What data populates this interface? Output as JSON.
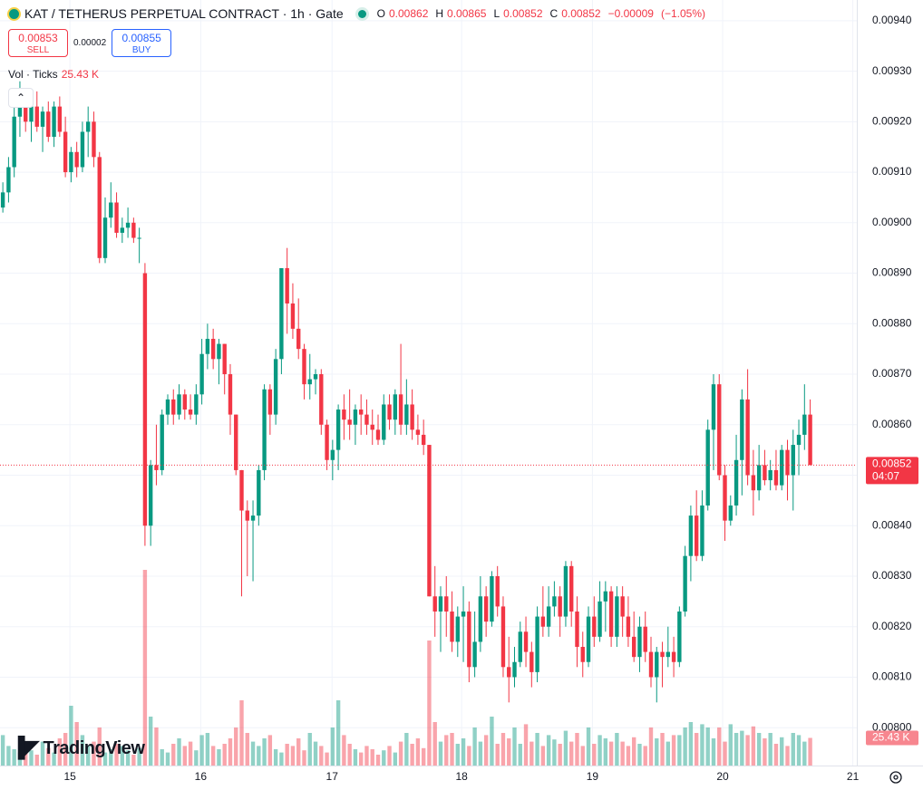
{
  "chart_data": {
    "type": "candlestick",
    "title": "KAT / TETHERUS PERPETUAL CONTRACT · 1h · Gate",
    "legend_keys": [
      "O",
      "H",
      "L",
      "C"
    ],
    "legend_values": [
      0.00862,
      0.00865,
      0.00852,
      0.00852
    ],
    "change": {
      "value": -9e-05,
      "label": "−0.00009"
    },
    "change_pct": {
      "value": -1.05,
      "label": "(−1.05%)"
    },
    "sell": {
      "price": 0.00853,
      "label": "SELL"
    },
    "spread": 2e-05,
    "buy": {
      "price": 0.00855,
      "label": "BUY"
    },
    "volume_title": "Vol · Ticks",
    "volume_label": {
      "value": 25.43,
      "label": "25.43 K"
    },
    "last_price": 0.00852,
    "countdown": "04:07",
    "brand": "TradingView",
    "up_color": "#089981",
    "down_color": "#f23645",
    "grid": true,
    "ylim": [
      0.007925,
      0.009441
    ],
    "yticks": [
      {
        "value": 0.0094,
        "label": "0.00940"
      },
      {
        "value": 0.0093,
        "label": "0.00930"
      },
      {
        "value": 0.0092,
        "label": "0.00920"
      },
      {
        "value": 0.0091,
        "label": "0.00910"
      },
      {
        "value": 0.009,
        "label": "0.00900"
      },
      {
        "value": 0.0089,
        "label": "0.00890"
      },
      {
        "value": 0.0088,
        "label": "0.00880"
      },
      {
        "value": 0.0087,
        "label": "0.00870"
      },
      {
        "value": 0.0086,
        "label": "0.00860"
      },
      {
        "value": 0.0085,
        "label": "0.00850"
      },
      {
        "value": 0.0084,
        "label": "0.00840"
      },
      {
        "value": 0.0083,
        "label": "0.00830"
      },
      {
        "value": 0.0082,
        "label": "0.00820"
      },
      {
        "value": 0.0081,
        "label": "0.00810"
      },
      {
        "value": 0.008,
        "label": "0.00800"
      }
    ],
    "xlim": [
      -0.5,
      150.2
    ],
    "xticks": [
      {
        "value": 11.8,
        "label": "15"
      },
      {
        "value": 34.8,
        "label": "16"
      },
      {
        "value": 57.9,
        "label": "17"
      },
      {
        "value": 80.7,
        "label": "18"
      },
      {
        "value": 103.7,
        "label": "19"
      },
      {
        "value": 126.6,
        "label": "20"
      },
      {
        "value": 149.5,
        "label": "21"
      }
    ],
    "volume_ylim": [
      0,
      250
    ],
    "ohlc": [
      [
        0.00903,
        0.00908,
        0.00902,
        0.00906
      ],
      [
        0.00906,
        0.00913,
        0.00904,
        0.00911
      ],
      [
        0.00911,
        0.00923,
        0.00909,
        0.00921
      ],
      [
        0.00921,
        0.00928,
        0.00917,
        0.00924
      ],
      [
        0.00924,
        0.00926,
        0.00918,
        0.0092
      ],
      [
        0.0092,
        0.00925,
        0.00916,
        0.00923
      ],
      [
        0.00923,
        0.00926,
        0.00918,
        0.00919
      ],
      [
        0.00919,
        0.00923,
        0.00914,
        0.00922
      ],
      [
        0.00922,
        0.00924,
        0.00916,
        0.00917
      ],
      [
        0.00917,
        0.00924,
        0.00915,
        0.00923
      ],
      [
        0.00923,
        0.00925,
        0.00917,
        0.00918
      ],
      [
        0.00918,
        0.00921,
        0.00909,
        0.0091
      ],
      [
        0.0091,
        0.00915,
        0.00908,
        0.00914
      ],
      [
        0.00914,
        0.00916,
        0.00909,
        0.00911
      ],
      [
        0.00911,
        0.0092,
        0.0091,
        0.00918
      ],
      [
        0.00918,
        0.00923,
        0.00913,
        0.0092
      ],
      [
        0.0092,
        0.00922,
        0.00911,
        0.00913
      ],
      [
        0.00913,
        0.00914,
        0.00892,
        0.00893
      ],
      [
        0.00893,
        0.00905,
        0.00892,
        0.00901
      ],
      [
        0.00901,
        0.00908,
        0.00899,
        0.00904
      ],
      [
        0.00904,
        0.00906,
        0.00897,
        0.00898
      ],
      [
        0.00898,
        0.00901,
        0.00896,
        0.00899
      ],
      [
        0.00899,
        0.00903,
        0.00897,
        0.009
      ],
      [
        0.009,
        0.00901,
        0.00896,
        0.00897
      ],
      [
        0.00897,
        0.00899,
        0.00892,
        0.00897
      ],
      [
        0.0089,
        0.00892,
        0.00836,
        0.0084
      ],
      [
        0.0084,
        0.00853,
        0.00836,
        0.00852
      ],
      [
        0.00852,
        0.0086,
        0.00848,
        0.00851
      ],
      [
        0.00851,
        0.00863,
        0.0085,
        0.00862
      ],
      [
        0.00862,
        0.00866,
        0.0086,
        0.00865
      ],
      [
        0.00865,
        0.00867,
        0.0086,
        0.00862
      ],
      [
        0.00862,
        0.00868,
        0.00861,
        0.00866
      ],
      [
        0.00866,
        0.00867,
        0.00861,
        0.00863
      ],
      [
        0.00863,
        0.00866,
        0.00861,
        0.00862
      ],
      [
        0.00862,
        0.00868,
        0.0086,
        0.00866
      ],
      [
        0.00866,
        0.00877,
        0.00864,
        0.00874
      ],
      [
        0.00874,
        0.0088,
        0.00871,
        0.00877
      ],
      [
        0.00877,
        0.00879,
        0.00871,
        0.00873
      ],
      [
        0.00873,
        0.00877,
        0.00868,
        0.00876
      ],
      [
        0.00876,
        0.00876,
        0.00866,
        0.0087
      ],
      [
        0.0087,
        0.00872,
        0.00858,
        0.00862
      ],
      [
        0.00862,
        0.00862,
        0.0085,
        0.00851
      ],
      [
        0.00851,
        0.00851,
        0.00826,
        0.00843
      ],
      [
        0.00843,
        0.00845,
        0.0083,
        0.00841
      ],
      [
        0.00841,
        0.00845,
        0.00829,
        0.00842
      ],
      [
        0.00842,
        0.00852,
        0.0084,
        0.00851
      ],
      [
        0.00851,
        0.00868,
        0.00849,
        0.00867
      ],
      [
        0.00867,
        0.00868,
        0.00858,
        0.00862
      ],
      [
        0.00862,
        0.00875,
        0.0086,
        0.00873
      ],
      [
        0.00873,
        0.00891,
        0.0087,
        0.00891
      ],
      [
        0.00891,
        0.00895,
        0.00878,
        0.00884
      ],
      [
        0.00884,
        0.00888,
        0.00877,
        0.00879
      ],
      [
        0.00879,
        0.00885,
        0.00873,
        0.00875
      ],
      [
        0.00875,
        0.00876,
        0.00865,
        0.00868
      ],
      [
        0.00868,
        0.00874,
        0.00865,
        0.00869
      ],
      [
        0.00869,
        0.00871,
        0.00866,
        0.0087
      ],
      [
        0.0087,
        0.00871,
        0.00858,
        0.0086
      ],
      [
        0.0086,
        0.00861,
        0.00851,
        0.00853
      ],
      [
        0.00853,
        0.00857,
        0.00849,
        0.00855
      ],
      [
        0.00855,
        0.00864,
        0.00851,
        0.00863
      ],
      [
        0.00863,
        0.00866,
        0.00857,
        0.00861
      ],
      [
        0.00861,
        0.00867,
        0.00857,
        0.0086
      ],
      [
        0.0086,
        0.00864,
        0.00856,
        0.00863
      ],
      [
        0.00863,
        0.00866,
        0.00858,
        0.00862
      ],
      [
        0.00862,
        0.00865,
        0.00858,
        0.0086
      ],
      [
        0.0086,
        0.00863,
        0.00856,
        0.00859
      ],
      [
        0.00859,
        0.00862,
        0.00856,
        0.00857
      ],
      [
        0.00857,
        0.00866,
        0.00856,
        0.00864
      ],
      [
        0.00864,
        0.00866,
        0.00859,
        0.00861
      ],
      [
        0.00861,
        0.00867,
        0.00858,
        0.00866
      ],
      [
        0.00866,
        0.00876,
        0.00858,
        0.0086
      ],
      [
        0.0086,
        0.00869,
        0.00858,
        0.00864
      ],
      [
        0.00864,
        0.00867,
        0.00857,
        0.00859
      ],
      [
        0.00859,
        0.00862,
        0.00856,
        0.00858
      ],
      [
        0.00858,
        0.00861,
        0.00854,
        0.00856
      ],
      [
        0.00856,
        0.00856,
        0.00826,
        0.00826
      ],
      [
        0.00826,
        0.00832,
        0.00818,
        0.00823
      ],
      [
        0.00823,
        0.00828,
        0.00815,
        0.00826
      ],
      [
        0.00826,
        0.0083,
        0.00818,
        0.00823
      ],
      [
        0.00823,
        0.00827,
        0.00815,
        0.00817
      ],
      [
        0.00817,
        0.00824,
        0.00814,
        0.00822
      ],
      [
        0.00822,
        0.00828,
        0.00813,
        0.00823
      ],
      [
        0.00823,
        0.00825,
        0.00809,
        0.00812
      ],
      [
        0.00812,
        0.00823,
        0.0081,
        0.00817
      ],
      [
        0.00817,
        0.0083,
        0.00815,
        0.00826
      ],
      [
        0.00826,
        0.00828,
        0.00818,
        0.00821
      ],
      [
        0.00821,
        0.00831,
        0.0082,
        0.0083
      ],
      [
        0.0083,
        0.00832,
        0.00822,
        0.00824
      ],
      [
        0.00824,
        0.00826,
        0.0081,
        0.00812
      ],
      [
        0.00812,
        0.00818,
        0.00805,
        0.0081
      ],
      [
        0.0081,
        0.00816,
        0.00808,
        0.00813
      ],
      [
        0.00813,
        0.00821,
        0.00812,
        0.00819
      ],
      [
        0.00819,
        0.00822,
        0.00812,
        0.00815
      ],
      [
        0.00815,
        0.00817,
        0.00808,
        0.00811
      ],
      [
        0.00811,
        0.00824,
        0.00809,
        0.00822
      ],
      [
        0.00822,
        0.00828,
        0.00818,
        0.0082
      ],
      [
        0.0082,
        0.00828,
        0.00818,
        0.00824
      ],
      [
        0.00824,
        0.00829,
        0.00822,
        0.00826
      ],
      [
        0.00826,
        0.00828,
        0.00818,
        0.00822
      ],
      [
        0.00822,
        0.00833,
        0.0082,
        0.00832
      ],
      [
        0.00832,
        0.00833,
        0.0082,
        0.00823
      ],
      [
        0.00823,
        0.00826,
        0.00812,
        0.00816
      ],
      [
        0.00816,
        0.00819,
        0.0081,
        0.00813
      ],
      [
        0.00813,
        0.00824,
        0.00812,
        0.00822
      ],
      [
        0.00822,
        0.00826,
        0.00816,
        0.00818
      ],
      [
        0.00818,
        0.00829,
        0.00817,
        0.00825
      ],
      [
        0.00825,
        0.00829,
        0.00819,
        0.00827
      ],
      [
        0.00827,
        0.00828,
        0.00816,
        0.00818
      ],
      [
        0.00818,
        0.00828,
        0.00816,
        0.00826
      ],
      [
        0.00826,
        0.00828,
        0.00818,
        0.00822
      ],
      [
        0.00822,
        0.00826,
        0.00816,
        0.00818
      ],
      [
        0.00818,
        0.00823,
        0.00813,
        0.00814
      ],
      [
        0.00814,
        0.00822,
        0.00811,
        0.0082
      ],
      [
        0.0082,
        0.00823,
        0.00813,
        0.00815
      ],
      [
        0.00815,
        0.00818,
        0.00808,
        0.0081
      ],
      [
        0.0081,
        0.00816,
        0.00805,
        0.00815
      ],
      [
        0.00815,
        0.00817,
        0.00808,
        0.00814
      ],
      [
        0.00814,
        0.0082,
        0.00812,
        0.00815
      ],
      [
        0.00815,
        0.00818,
        0.0081,
        0.00813
      ],
      [
        0.00813,
        0.00824,
        0.00812,
        0.00823
      ],
      [
        0.00823,
        0.00836,
        0.00822,
        0.00834
      ],
      [
        0.00834,
        0.00844,
        0.00829,
        0.00842
      ],
      [
        0.00842,
        0.00847,
        0.00833,
        0.00834
      ],
      [
        0.00834,
        0.00847,
        0.00833,
        0.00844
      ],
      [
        0.00844,
        0.00861,
        0.00843,
        0.00859
      ],
      [
        0.00859,
        0.0087,
        0.00851,
        0.00868
      ],
      [
        0.00868,
        0.0087,
        0.00849,
        0.0085
      ],
      [
        0.0085,
        0.00852,
        0.00837,
        0.00841
      ],
      [
        0.00841,
        0.00846,
        0.0084,
        0.00844
      ],
      [
        0.00844,
        0.00858,
        0.00842,
        0.00853
      ],
      [
        0.00853,
        0.00867,
        0.00846,
        0.00865
      ],
      [
        0.00865,
        0.00871,
        0.00848,
        0.0085
      ],
      [
        0.0085,
        0.00855,
        0.00842,
        0.00847
      ],
      [
        0.00847,
        0.00856,
        0.00845,
        0.00852
      ],
      [
        0.00852,
        0.00855,
        0.00848,
        0.00849
      ],
      [
        0.00849,
        0.00853,
        0.00847,
        0.00851
      ],
      [
        0.00851,
        0.00855,
        0.00847,
        0.00848
      ],
      [
        0.00848,
        0.00856,
        0.00847,
        0.00855
      ],
      [
        0.00855,
        0.00857,
        0.00845,
        0.0085
      ],
      [
        0.0085,
        0.00859,
        0.00843,
        0.00856
      ],
      [
        0.00856,
        0.00861,
        0.0085,
        0.00858
      ],
      [
        0.00858,
        0.00868,
        0.00855,
        0.00862
      ],
      [
        0.00862,
        0.00865,
        0.00852,
        0.00852
      ]
    ],
    "volumes": [
      28,
      18,
      15,
      12,
      20,
      14,
      10,
      22,
      16,
      12,
      25,
      30,
      55,
      40,
      28,
      18,
      22,
      35,
      12,
      15,
      20,
      18,
      14,
      10,
      16,
      180,
      45,
      35,
      15,
      12,
      20,
      25,
      18,
      22,
      14,
      28,
      30,
      18,
      15,
      20,
      25,
      35,
      60,
      30,
      22,
      18,
      25,
      28,
      15,
      12,
      20,
      18,
      25,
      14,
      30,
      22,
      18,
      12,
      35,
      60,
      28,
      20,
      15,
      12,
      18,
      15,
      10,
      14,
      18,
      12,
      22,
      30,
      20,
      25,
      16,
      115,
      40,
      22,
      28,
      30,
      20,
      25,
      18,
      35,
      22,
      28,
      45,
      20,
      30,
      25,
      35,
      20,
      38,
      22,
      30,
      18,
      28,
      24,
      20,
      32,
      22,
      30,
      18,
      35,
      20,
      28,
      25,
      22,
      30,
      22,
      18,
      26,
      20,
      18,
      35,
      25,
      30,
      22,
      28,
      28,
      35,
      40,
      30,
      38,
      35,
      25,
      35,
      22,
      38,
      30,
      32,
      28,
      36,
      30,
      25,
      30,
      20,
      26,
      18,
      30,
      28,
      22,
      25.43
    ]
  }
}
